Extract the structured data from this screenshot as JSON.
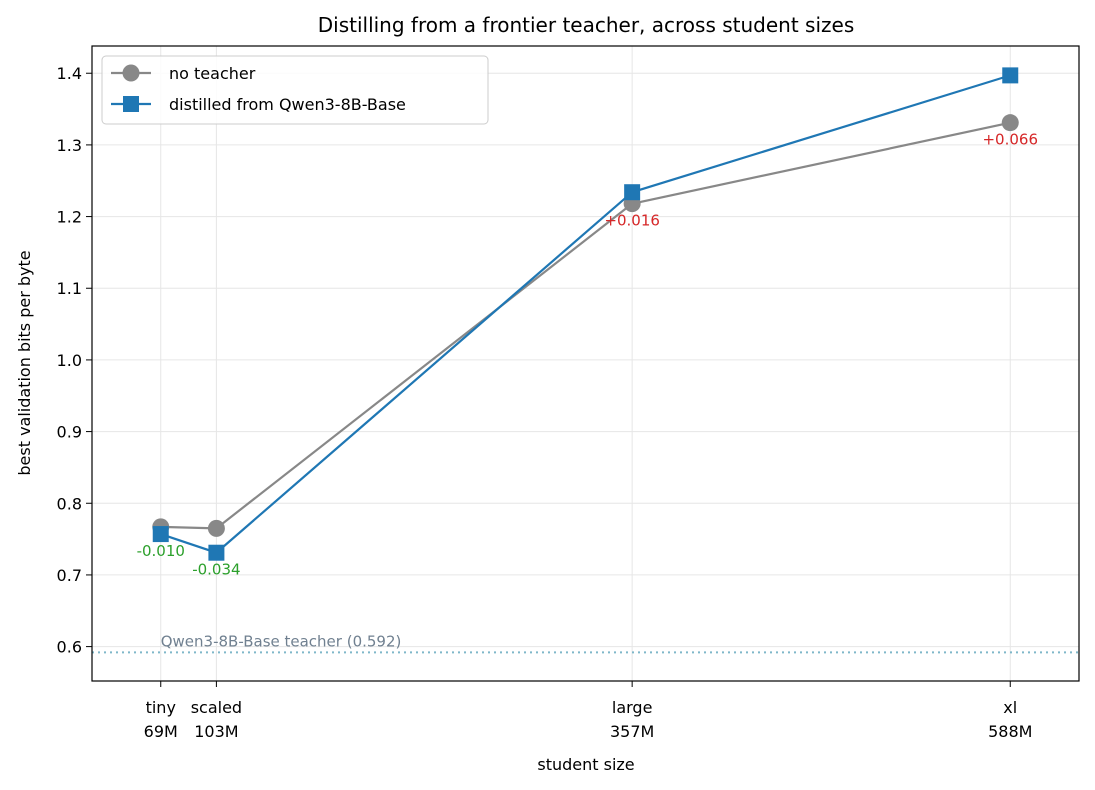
{
  "chart_data": {
    "type": "line",
    "title": "Distilling from a frontier teacher, across student sizes",
    "xlabel": "student size",
    "ylabel": "best validation bits per byte",
    "x": [
      69,
      103,
      357,
      588
    ],
    "x_tick_labels": [
      {
        "name": "tiny",
        "size": "69M"
      },
      {
        "name": "scaled",
        "size": "103M"
      },
      {
        "name": "large",
        "size": "357M"
      },
      {
        "name": "xl",
        "size": "588M"
      }
    ],
    "ylim": [
      0.552,
      1.438
    ],
    "y_ticks": [
      0.6,
      0.7,
      0.8,
      0.9,
      1.0,
      1.1,
      1.2,
      1.3,
      1.4
    ],
    "grid": true,
    "legend_position": "top-left",
    "series": [
      {
        "name": "no teacher",
        "values": [
          0.767,
          0.765,
          1.218,
          1.331
        ],
        "color": "#888888",
        "marker": "circle"
      },
      {
        "name": "distilled from Qwen3-8B-Base",
        "values": [
          0.757,
          0.731,
          1.234,
          1.397
        ],
        "color": "#1f77b4",
        "marker": "square"
      }
    ],
    "annotations": [
      {
        "text": "-0.010",
        "x": 69,
        "y": 0.757,
        "color": "#2ca02c"
      },
      {
        "text": "-0.034",
        "x": 103,
        "y": 0.731,
        "color": "#2ca02c"
      },
      {
        "text": "+0.016",
        "x": 357,
        "y": 1.218,
        "color": "#d62728"
      },
      {
        "text": "+0.066",
        "x": 588,
        "y": 1.331,
        "color": "#d62728"
      }
    ],
    "reference_line": {
      "label": "Qwen3-8B-Base teacher (0.592)",
      "y": 0.592,
      "color": "#7fb7c9",
      "text_color": "#708090"
    }
  }
}
